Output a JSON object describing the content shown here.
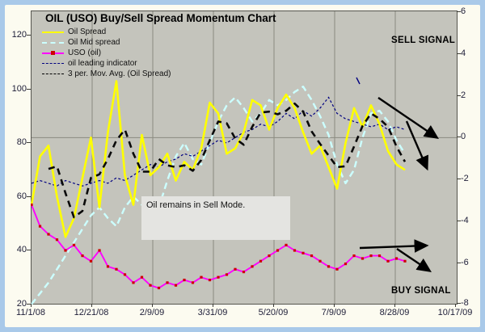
{
  "title": "OIL (USO) Buy/Sell Spread Momentum Chart",
  "signals": {
    "sell": "SELL SIGNAL",
    "buy": "BUY SIGNAL"
  },
  "annotation": {
    "text": "Oil remains in Sell Mode."
  },
  "legend": [
    {
      "label": "Oil Spread",
      "swatch": "yellow-solid"
    },
    {
      "label": "Oil Mid spread",
      "swatch": "cyan-dashed"
    },
    {
      "label": "USO (oil)",
      "swatch": "magenta-marker"
    },
    {
      "label": "oil leading indicator",
      "swatch": "navy-dotted"
    },
    {
      "label": "3 per. Mov. Avg. (Oil Spread)",
      "swatch": "black-dashed"
    }
  ],
  "colors": {
    "frame_blue": "#a9c9e9",
    "sheet_cream": "#fcfbf0",
    "plot_gray": "#c4c4bc",
    "gridline": "#8a8a80",
    "oil_spread": "#ffff00",
    "oil_mid_spread": "#ccffff",
    "uso": "#ff00ff",
    "uso_marker": "#cc0000",
    "leading_indicator": "#000080",
    "moving_average": "#0a0a0a",
    "arrow": "#000000"
  },
  "chart_data": {
    "type": "line",
    "title": "OIL (USO) Buy/Sell Spread Momentum Chart",
    "x_tick_labels": [
      "11/1/08",
      "12/21/08",
      "2/9/09",
      "3/31/09",
      "5/20/09",
      "7/9/09",
      "8/28/09",
      "10/17/09"
    ],
    "x_start": "11/1/08",
    "x_interval": "weekly",
    "left_axis": {
      "ticks": [
        120,
        100,
        80,
        60,
        40,
        20
      ],
      "min": 20,
      "max": 120
    },
    "right_axis": {
      "ticks": [
        6,
        4,
        2,
        0,
        -2,
        -4,
        -6,
        -8
      ],
      "min": -8,
      "max": 6
    },
    "grid": {
      "vertical": true,
      "horizontal_zero_line_right_axis": 0
    },
    "legend_position": "top-left-inside",
    "series": [
      {
        "name": "Oil Spread",
        "axis": "left",
        "style": "solid-thick",
        "color": "#ffff00",
        "values": [
          57,
          75,
          79,
          60,
          45,
          52,
          67,
          82,
          56,
          84,
          103,
          68,
          57,
          83,
          68,
          71,
          76,
          66,
          73,
          70,
          78,
          95,
          91,
          76,
          78,
          84,
          96,
          94,
          85,
          93,
          98,
          93,
          84,
          76,
          79,
          71,
          63,
          80,
          93,
          86,
          94,
          87,
          77,
          72,
          70
        ]
      },
      {
        "name": "Oil Mid spread",
        "axis": "left",
        "style": "dashed-thick",
        "color": "#ccffff",
        "values": [
          20,
          24,
          28,
          33,
          38,
          43,
          48,
          53,
          56,
          52,
          49,
          56,
          60,
          57,
          54,
          56,
          66,
          75,
          80,
          74,
          72,
          80,
          88,
          94,
          97,
          93,
          88,
          91,
          96,
          94,
          96,
          99,
          101,
          96,
          90,
          83,
          72,
          65,
          70,
          82,
          91,
          92,
          88,
          81,
          76
        ]
      },
      {
        "name": "USO (oil)",
        "axis": "left",
        "style": "solid-marker",
        "color": "#ff00ff",
        "values": [
          57,
          49,
          46,
          44,
          40,
          42,
          38,
          36,
          40,
          34,
          33,
          31,
          28,
          30,
          27,
          26,
          28,
          27,
          29,
          28,
          30,
          29,
          30,
          31,
          33,
          32,
          34,
          36,
          38,
          40,
          42,
          40,
          39,
          38,
          36,
          34,
          33,
          35,
          38,
          37,
          38,
          38,
          36,
          37,
          36
        ]
      },
      {
        "name": "oil leading indicator",
        "axis": "left",
        "style": "dotted-thin",
        "color": "#000080",
        "values": [
          65,
          66,
          65,
          64,
          66,
          65,
          64,
          65,
          66,
          65,
          67,
          66,
          68,
          70,
          72,
          71,
          73,
          74,
          76,
          75,
          77,
          79,
          81,
          80,
          82,
          84,
          85,
          87,
          86,
          88,
          91,
          89,
          92,
          90,
          93,
          97,
          91,
          89,
          88,
          87,
          86,
          87,
          85,
          86,
          85
        ]
      },
      {
        "name": "3 per. Mov. Avg. (Oil Spread)",
        "axis": "left",
        "style": "dashed-thick",
        "color": "#0a0a0a",
        "derived": "3-period moving average of Oil Spread"
      }
    ],
    "overlay": {
      "arrows": [
        {
          "name": "sell-trend-arrow-1",
          "from": [
            430,
            108
          ],
          "to": [
            502,
            157
          ]
        },
        {
          "name": "sell-trend-arrow-2",
          "from": [
            465,
            137
          ],
          "to": [
            490,
            195
          ]
        },
        {
          "name": "buy-trend-arrow-flat",
          "from": [
            407,
            294
          ],
          "to": [
            489,
            291
          ]
        },
        {
          "name": "buy-trend-arrow-down",
          "from": [
            453,
            295
          ],
          "to": [
            493,
            322
          ]
        }
      ],
      "stray_indicator_dash": {
        "from": [
          403,
          83
        ],
        "to": [
          407,
          91
        ]
      }
    }
  }
}
